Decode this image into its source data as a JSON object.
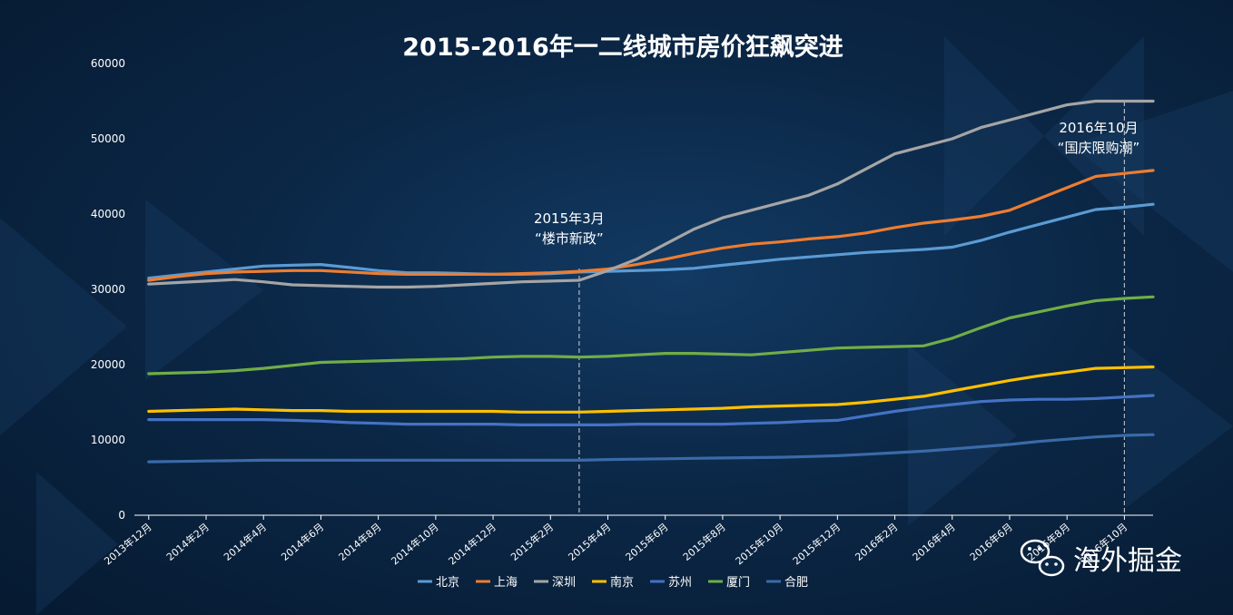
{
  "chart_data": {
    "type": "line",
    "title": "2015-2016年一二线城市房价狂飙突进",
    "xlabel": "",
    "ylabel": "",
    "ylim": [
      0,
      60000
    ],
    "y_ticks": [
      0,
      10000,
      20000,
      30000,
      40000,
      50000,
      60000
    ],
    "grid": false,
    "legend_position": "bottom",
    "categories": [
      "2013年12月",
      "2014年1月",
      "2014年2月",
      "2014年3月",
      "2014年4月",
      "2014年5月",
      "2014年6月",
      "2014年7月",
      "2014年8月",
      "2014年9月",
      "2014年10月",
      "2014年11月",
      "2014年12月",
      "2015年1月",
      "2015年2月",
      "2015年3月",
      "2015年4月",
      "2015年5月",
      "2015年6月",
      "2015年7月",
      "2015年8月",
      "2015年9月",
      "2015年10月",
      "2015年11月",
      "2015年12月",
      "2016年1月",
      "2016年2月",
      "2016年3月",
      "2016年4月",
      "2016年5月",
      "2016年6月",
      "2016年7月",
      "2016年8月",
      "2016年9月",
      "2016年10月",
      "2016年11月"
    ],
    "x_tick_labels": [
      "2013年12月",
      "2014年2月",
      "2014年4月",
      "2014年6月",
      "2014年8月",
      "2014年10月",
      "2014年12月",
      "2015年2月",
      "2015年4月",
      "2015年6月",
      "2015年8月",
      "2015年10月",
      "2015年12月",
      "2016年2月",
      "2016年4月",
      "2016年6月",
      "2016年8月",
      "2016年10月"
    ],
    "series": [
      {
        "name": "北京",
        "color": "#5b9bd5",
        "values": [
          31500,
          31900,
          32300,
          32700,
          33100,
          33200,
          33300,
          32900,
          32500,
          32200,
          32200,
          32100,
          32000,
          32000,
          32100,
          32300,
          32400,
          32500,
          32600,
          32800,
          33200,
          33600,
          34000,
          34300,
          34600,
          34900,
          35100,
          35300,
          35600,
          36500,
          37600,
          38600,
          39600,
          40600,
          40900,
          41300
        ]
      },
      {
        "name": "上海",
        "color": "#ed7d31",
        "values": [
          31200,
          31700,
          32100,
          32300,
          32400,
          32500,
          32500,
          32300,
          32100,
          32000,
          32000,
          32000,
          32000,
          32100,
          32200,
          32400,
          32700,
          33300,
          34000,
          34800,
          35500,
          36000,
          36300,
          36700,
          37000,
          37500,
          38200,
          38800,
          39200,
          39700,
          40500,
          42000,
          43500,
          45000,
          45400,
          45800
        ]
      },
      {
        "name": "深圳",
        "color": "#a5a5a5",
        "values": [
          30700,
          30900,
          31100,
          31300,
          31000,
          30600,
          30500,
          30400,
          30300,
          30300,
          30400,
          30600,
          30800,
          31000,
          31100,
          31200,
          32500,
          34000,
          36000,
          38000,
          39500,
          40500,
          41500,
          42500,
          44000,
          46000,
          48000,
          49000,
          50000,
          51500,
          52500,
          53500,
          54500,
          55000,
          55000,
          55000
        ]
      },
      {
        "name": "南京",
        "color": "#ffc000",
        "values": [
          13800,
          13900,
          14000,
          14100,
          14000,
          13900,
          13900,
          13800,
          13800,
          13800,
          13800,
          13800,
          13800,
          13700,
          13700,
          13700,
          13800,
          13900,
          14000,
          14100,
          14200,
          14400,
          14500,
          14600,
          14700,
          15000,
          15400,
          15800,
          16500,
          17200,
          17900,
          18500,
          19000,
          19500,
          19600,
          19700
        ]
      },
      {
        "name": "苏州",
        "color": "#4472c4",
        "values": [
          12700,
          12700,
          12700,
          12700,
          12700,
          12600,
          12500,
          12300,
          12200,
          12100,
          12100,
          12100,
          12100,
          12000,
          12000,
          12000,
          12000,
          12100,
          12100,
          12100,
          12100,
          12200,
          12300,
          12500,
          12600,
          13200,
          13800,
          14300,
          14700,
          15100,
          15300,
          15400,
          15400,
          15500,
          15700,
          15900
        ]
      },
      {
        "name": "厦门",
        "color": "#70ad47",
        "values": [
          18800,
          18900,
          19000,
          19200,
          19500,
          19900,
          20300,
          20400,
          20500,
          20600,
          20700,
          20800,
          21000,
          21100,
          21100,
          21000,
          21100,
          21300,
          21500,
          21500,
          21400,
          21300,
          21600,
          21900,
          22200,
          22300,
          22400,
          22500,
          23500,
          24900,
          26200,
          27000,
          27800,
          28500,
          28800,
          29000
        ]
      },
      {
        "name": "合肥",
        "color": "#3a6aa8",
        "values": [
          7100,
          7150,
          7200,
          7250,
          7300,
          7300,
          7300,
          7300,
          7300,
          7300,
          7300,
          7300,
          7300,
          7300,
          7300,
          7300,
          7400,
          7450,
          7500,
          7550,
          7600,
          7650,
          7700,
          7800,
          7900,
          8100,
          8300,
          8500,
          8800,
          9100,
          9400,
          9800,
          10100,
          10400,
          10600,
          10700
        ]
      }
    ],
    "annotations": [
      {
        "lines": [
          "2015年3月",
          "“楼市新政”"
        ],
        "category": "2015年3月"
      },
      {
        "lines": [
          "2016年10月",
          "“国庆限购潮”"
        ],
        "category": "2016年10月"
      }
    ]
  },
  "watermark": {
    "text": "海外掘金",
    "icon": "wechat-icon"
  }
}
